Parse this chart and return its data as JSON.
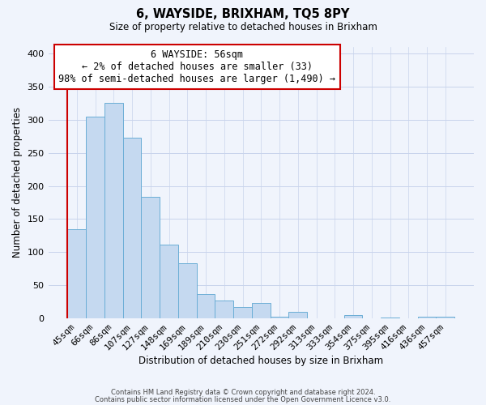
{
  "title": "6, WAYSIDE, BRIXHAM, TQ5 8PY",
  "subtitle": "Size of property relative to detached houses in Brixham",
  "xlabel": "Distribution of detached houses by size in Brixham",
  "ylabel": "Number of detached properties",
  "categories": [
    "45sqm",
    "66sqm",
    "86sqm",
    "107sqm",
    "127sqm",
    "148sqm",
    "169sqm",
    "189sqm",
    "210sqm",
    "230sqm",
    "251sqm",
    "272sqm",
    "292sqm",
    "313sqm",
    "333sqm",
    "354sqm",
    "375sqm",
    "395sqm",
    "416sqm",
    "436sqm",
    "457sqm"
  ],
  "values": [
    135,
    305,
    325,
    273,
    183,
    112,
    84,
    37,
    27,
    17,
    24,
    3,
    10,
    0,
    0,
    5,
    0,
    2,
    0,
    3,
    3
  ],
  "bar_color": "#c5d9f0",
  "bar_edge_color": "#6baed6",
  "annotation_box_text": "6 WAYSIDE: 56sqm\n← 2% of detached houses are smaller (33)\n98% of semi-detached houses are larger (1,490) →",
  "ylim": [
    0,
    410
  ],
  "yticks": [
    0,
    50,
    100,
    150,
    200,
    250,
    300,
    350,
    400
  ],
  "footer_line1": "Contains HM Land Registry data © Crown copyright and database right 2024.",
  "footer_line2": "Contains public sector information licensed under the Open Government Licence v3.0.",
  "bg_color": "#f0f4fc",
  "plot_bg_color": "#f0f4fc",
  "grid_color": "#c8d4ec",
  "property_line_color": "#cc0000",
  "property_bin_index": 0
}
